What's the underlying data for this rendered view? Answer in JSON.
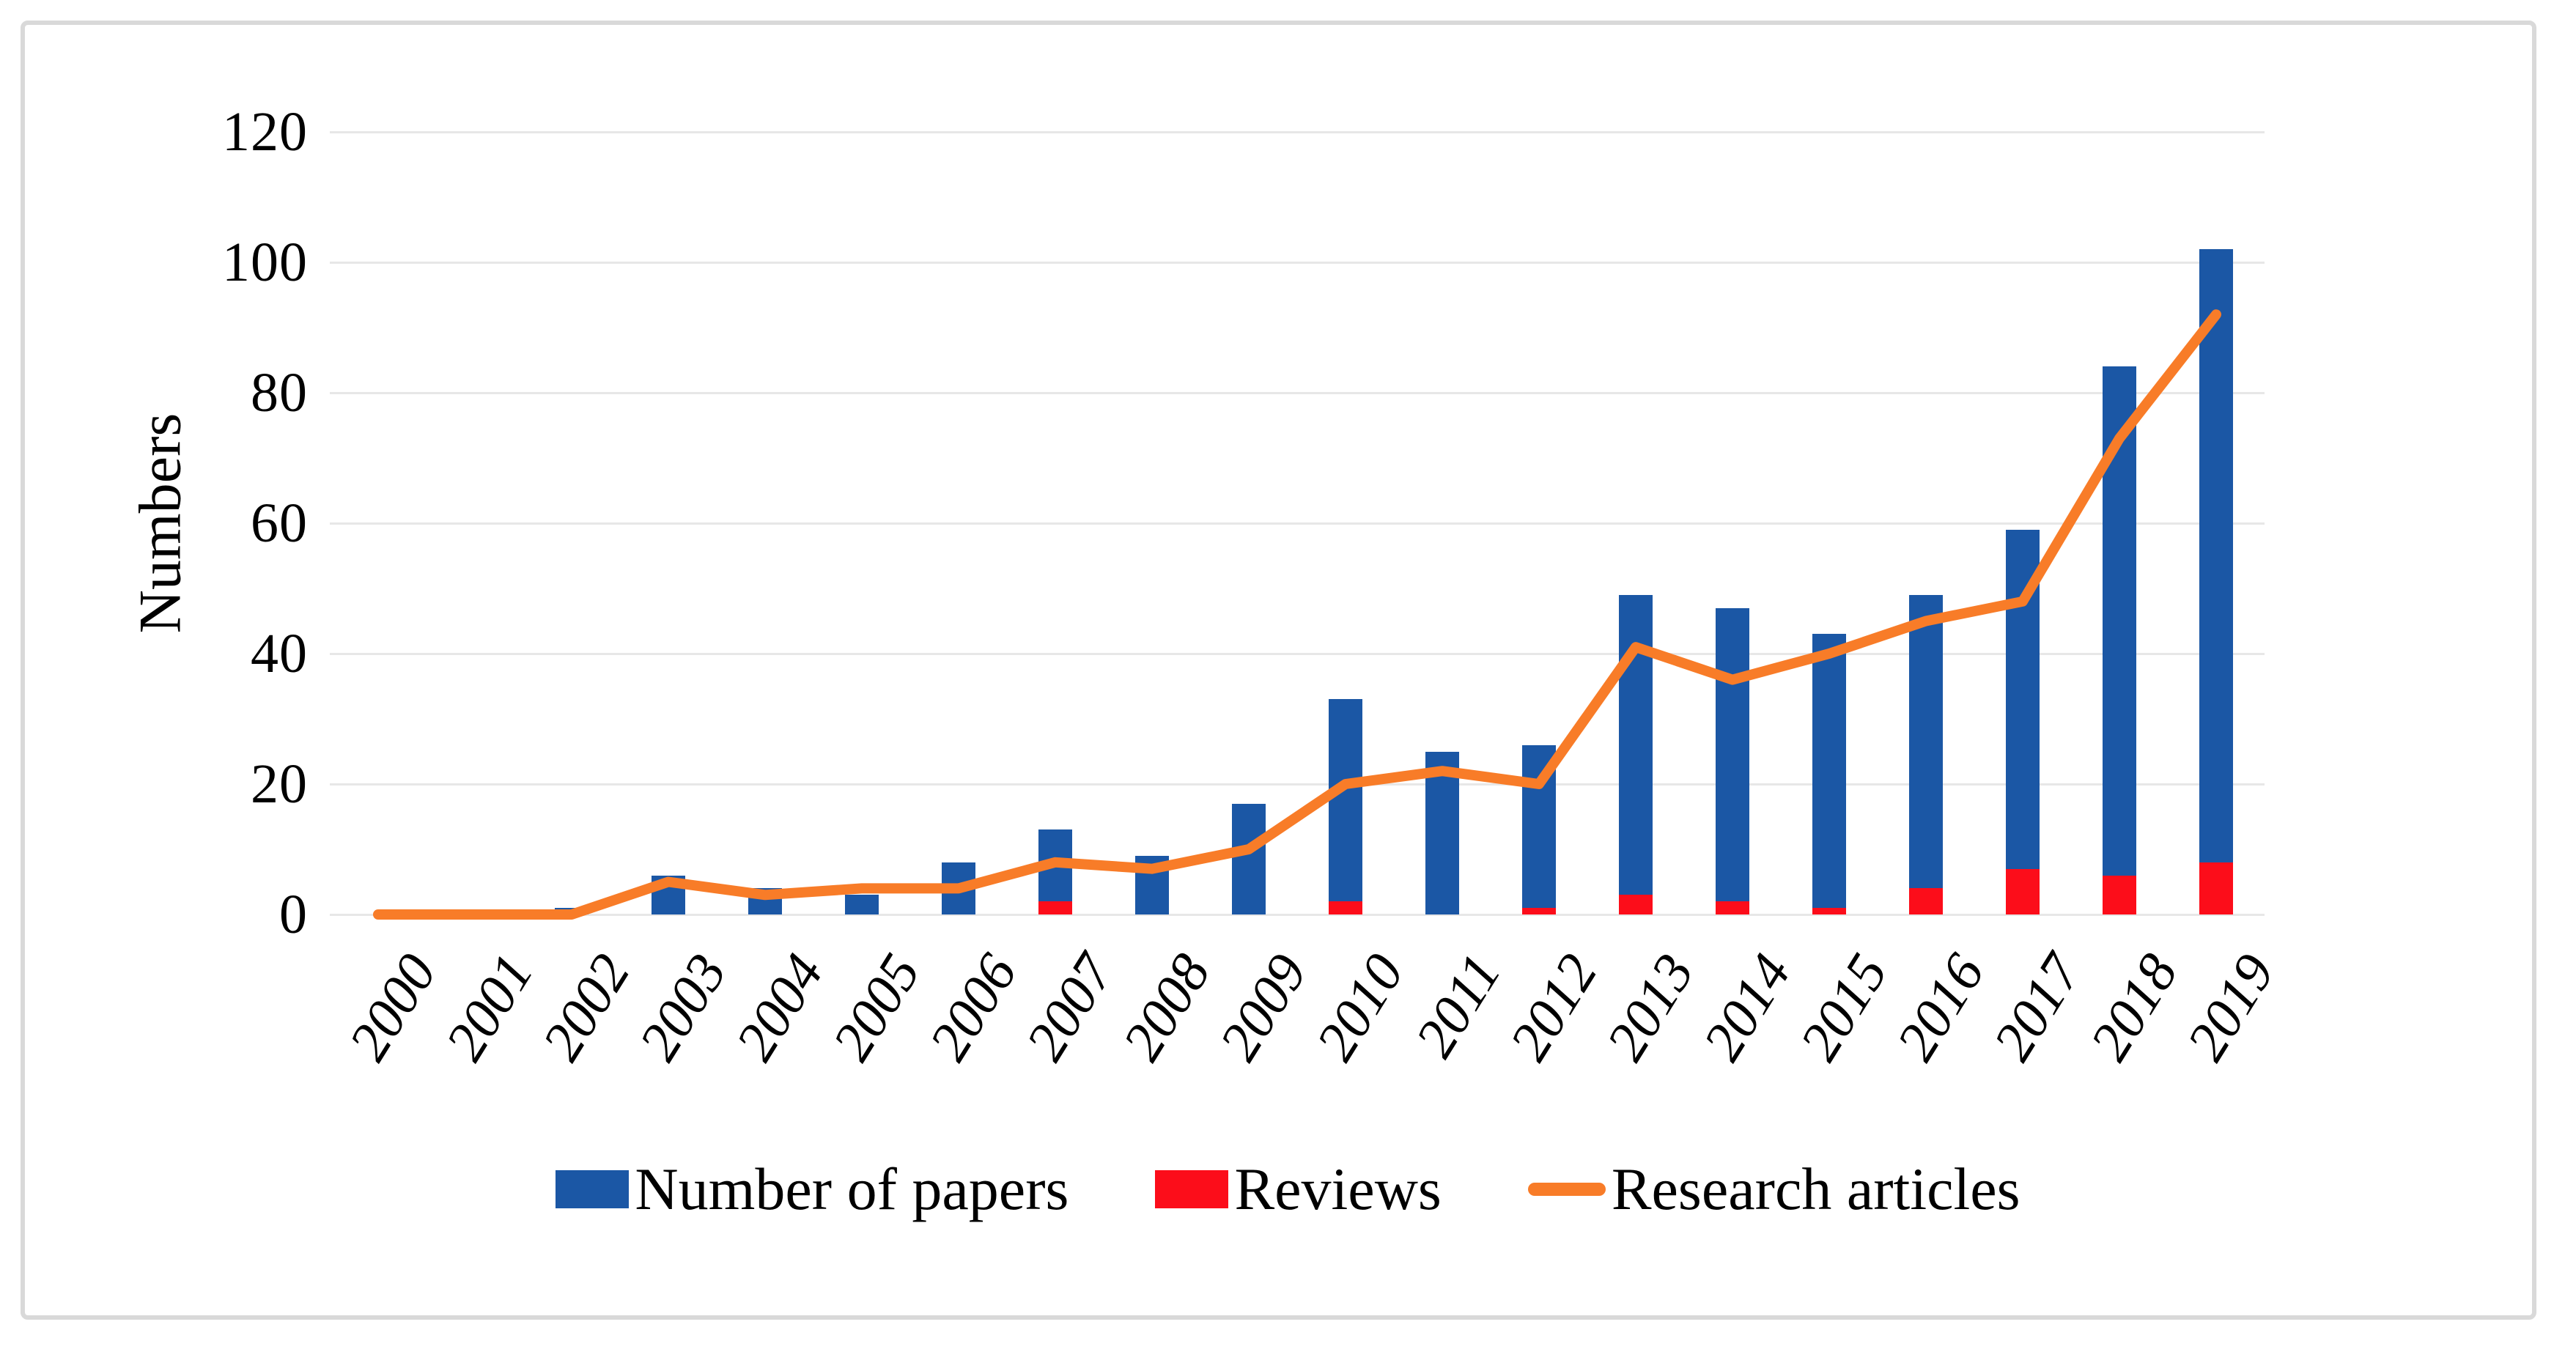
{
  "figure": {
    "border_color": "#d9d9d9",
    "background": "#ffffff"
  },
  "chart_data": {
    "type": "bar",
    "subtype": "bars-with-overlay-line",
    "title": "",
    "xlabel": "",
    "ylabel": "Numbers",
    "ylim": [
      0,
      120
    ],
    "ytick_step": 20,
    "yticks": [
      "0",
      "20",
      "40",
      "60",
      "80",
      "100",
      "120"
    ],
    "grid": true,
    "legend_position": "bottom",
    "categories": [
      "2000",
      "2001",
      "2002",
      "2003",
      "2004",
      "2005",
      "2006",
      "2007",
      "2008",
      "2009",
      "2010",
      "2011",
      "2012",
      "2013",
      "2014",
      "2015",
      "2016",
      "2017",
      "2018",
      "2019"
    ],
    "series": [
      {
        "name": "Number of papers",
        "type": "bar",
        "color": "#1b57a5",
        "values": [
          0,
          0,
          1,
          6,
          4,
          3,
          8,
          13,
          9,
          17,
          33,
          25,
          26,
          49,
          47,
          43,
          49,
          59,
          84,
          102
        ]
      },
      {
        "name": "Reviews",
        "type": "bar",
        "color": "#fc0d1a",
        "values": [
          0,
          0,
          0,
          0,
          0,
          0,
          0,
          2,
          0,
          0,
          2,
          0,
          1,
          3,
          2,
          1,
          4,
          7,
          6,
          8
        ]
      },
      {
        "name": "Research articles",
        "type": "line",
        "color": "#f87c28",
        "values": [
          0,
          0,
          0,
          5,
          3,
          4,
          4,
          8,
          7,
          10,
          20,
          22,
          20,
          41,
          36,
          40,
          45,
          48,
          73,
          92
        ]
      }
    ]
  },
  "colors": {
    "gridline": "#e7e7e7",
    "papers_blue": "#1b57a5",
    "reviews_red": "#fc0d1a",
    "articles_orange": "#f87c28"
  }
}
